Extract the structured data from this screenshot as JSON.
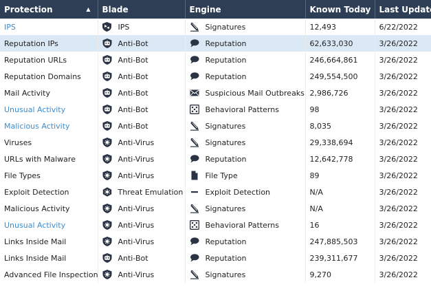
{
  "headers": {
    "protection": "Protection",
    "blade": "Blade",
    "engine": "Engine",
    "known_today": "Known Today",
    "last_update": "Last Update"
  },
  "colors": {
    "header_bg": "#2e3e55",
    "link": "#3c8cd0",
    "selected_row": "#dbe8f5"
  },
  "rows": [
    {
      "protection": "IPS",
      "link": true,
      "blade": "IPS",
      "blade_icon": "ips-icon",
      "engine": "Signatures",
      "engine_icon": "pen-icon",
      "known": "12,493",
      "updated": "6/22/2022"
    },
    {
      "protection": "Reputation IPs",
      "link": false,
      "blade": "Anti-Bot",
      "blade_icon": "anti-bot-icon",
      "engine": "Reputation",
      "engine_icon": "speech-bubble-icon",
      "known": "62,633,030",
      "updated": "3/26/2022",
      "selected": true
    },
    {
      "protection": "Reputation URLs",
      "link": false,
      "blade": "Anti-Bot",
      "blade_icon": "anti-bot-icon",
      "engine": "Reputation",
      "engine_icon": "speech-bubble-icon",
      "known": "246,664,861",
      "updated": "3/26/2022"
    },
    {
      "protection": "Reputation Domains",
      "link": false,
      "blade": "Anti-Bot",
      "blade_icon": "anti-bot-icon",
      "engine": "Reputation",
      "engine_icon": "speech-bubble-icon",
      "known": "249,554,500",
      "updated": "3/26/2022"
    },
    {
      "protection": "Mail Activity",
      "link": false,
      "blade": "Anti-Bot",
      "blade_icon": "anti-bot-icon",
      "engine": "Suspicious Mail Outbreaks",
      "engine_icon": "envelope-icon",
      "known": "2,986,726",
      "updated": "3/26/2022"
    },
    {
      "protection": "Unusual Activity",
      "link": true,
      "blade": "Anti-Bot",
      "blade_icon": "anti-bot-icon",
      "engine": "Behavioral Patterns",
      "engine_icon": "dice-icon",
      "known": "98",
      "updated": "3/26/2022"
    },
    {
      "protection": "Malicious Activity",
      "link": true,
      "blade": "Anti-Bot",
      "blade_icon": "anti-bot-icon",
      "engine": "Signatures",
      "engine_icon": "pen-icon",
      "known": "8,035",
      "updated": "3/26/2022"
    },
    {
      "protection": "Viruses",
      "link": false,
      "blade": "Anti-Virus",
      "blade_icon": "anti-virus-icon",
      "engine": "Signatures",
      "engine_icon": "pen-icon",
      "known": "29,338,694",
      "updated": "3/26/2022"
    },
    {
      "protection": "URLs with Malware",
      "link": false,
      "blade": "Anti-Virus",
      "blade_icon": "anti-virus-icon",
      "engine": "Reputation",
      "engine_icon": "speech-bubble-icon",
      "known": "12,642,778",
      "updated": "3/26/2022"
    },
    {
      "protection": "File Types",
      "link": false,
      "blade": "Anti-Virus",
      "blade_icon": "anti-virus-icon",
      "engine": "File Type",
      "engine_icon": "file-icon",
      "known": "89",
      "updated": "3/26/2022"
    },
    {
      "protection": "Exploit Detection",
      "link": false,
      "blade": "Threat Emulation",
      "blade_icon": "threat-emulation-icon",
      "engine": "Exploit Detection",
      "engine_icon": "dash-icon",
      "known": "N/A",
      "updated": "3/26/2022"
    },
    {
      "protection": "Malicious Activity",
      "link": false,
      "blade": "Anti-Virus",
      "blade_icon": "anti-virus-icon",
      "engine": "Signatures",
      "engine_icon": "pen-icon",
      "known": "N/A",
      "updated": "3/26/2022"
    },
    {
      "protection": "Unusual Activity",
      "link": true,
      "blade": "Anti-Virus",
      "blade_icon": "anti-virus-icon",
      "engine": "Behavioral Patterns",
      "engine_icon": "dice-icon",
      "known": "16",
      "updated": "3/26/2022"
    },
    {
      "protection": "Links Inside Mail",
      "link": false,
      "blade": "Anti-Virus",
      "blade_icon": "anti-virus-icon",
      "engine": "Reputation",
      "engine_icon": "speech-bubble-icon",
      "known": "247,885,503",
      "updated": "3/26/2022"
    },
    {
      "protection": "Links Inside Mail",
      "link": false,
      "blade": "Anti-Bot",
      "blade_icon": "anti-bot-icon",
      "engine": "Reputation",
      "engine_icon": "speech-bubble-icon",
      "known": "239,311,677",
      "updated": "3/26/2022"
    },
    {
      "protection": "Advanced File Inspection",
      "link": false,
      "blade": "Anti-Virus",
      "blade_icon": "anti-virus-icon",
      "engine": "Signatures",
      "engine_icon": "pen-icon",
      "known": "9,270",
      "updated": "3/26/2022"
    }
  ]
}
